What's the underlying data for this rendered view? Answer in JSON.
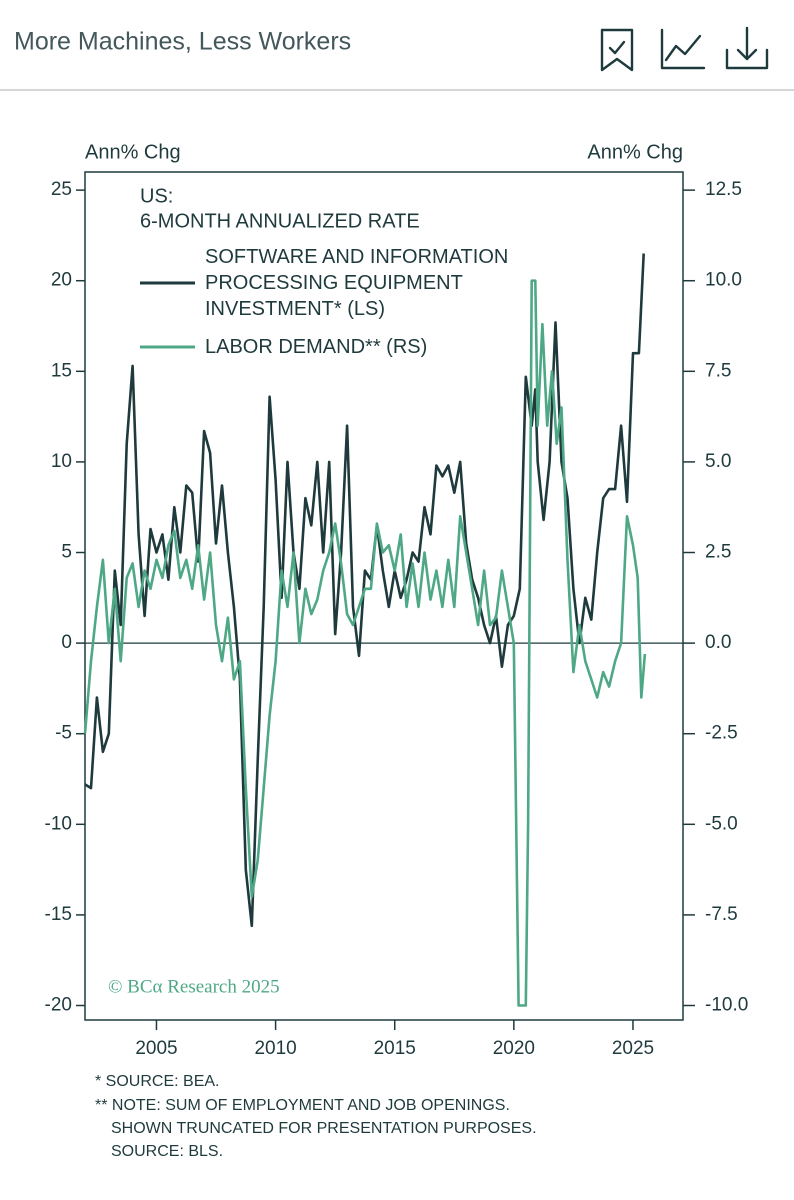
{
  "header": {
    "title": "More Machines, Less Workers"
  },
  "chart_data": {
    "type": "line",
    "legend_title": [
      "US:",
      "6-MONTH ANNUALIZED RATE"
    ],
    "ylabel": "Ann% Chg",
    "y2label": "Ann% Chg",
    "credit": "© BCα Research 2025",
    "xlim": [
      2002,
      2027.1
    ],
    "xticks": [
      2005,
      2010,
      2015,
      2020,
      2025
    ],
    "ylim": [
      -20.8,
      26
    ],
    "yticks": [
      -20,
      -15,
      -10,
      -5,
      0,
      5,
      10,
      15,
      20,
      25
    ],
    "y2lim": [
      -10.4,
      13
    ],
    "y2ticks": [
      {
        "value": -10,
        "label": "-10.0"
      },
      -7.5,
      {
        "value": -5,
        "label": "-5.0"
      },
      -2.5,
      {
        "value": 0,
        "label": "0.0"
      },
      2.5,
      {
        "value": 5,
        "label": "5.0"
      },
      7.5,
      {
        "value": 10,
        "label": "10.0"
      },
      12.5
    ],
    "series": [
      {
        "name": "SOFTWARE AND INFORMATION PROCESSING EQUIPMENT INVESTMENT* (LS)",
        "color": "#1f3a3d",
        "axis": "y",
        "x": [
          2002.0,
          2002.25,
          2002.5,
          2002.75,
          2003.0,
          2003.25,
          2003.5,
          2003.75,
          2004.0,
          2004.25,
          2004.5,
          2004.75,
          2005.0,
          2005.25,
          2005.5,
          2005.75,
          2006.0,
          2006.25,
          2006.5,
          2006.75,
          2007.0,
          2007.25,
          2007.5,
          2007.75,
          2008.0,
          2008.25,
          2008.5,
          2008.75,
          2009.0,
          2009.25,
          2009.5,
          2009.75,
          2010.0,
          2010.25,
          2010.5,
          2010.75,
          2011.0,
          2011.25,
          2011.5,
          2011.75,
          2012.0,
          2012.25,
          2012.5,
          2012.75,
          2013.0,
          2013.25,
          2013.5,
          2013.75,
          2014.0,
          2014.25,
          2014.5,
          2014.75,
          2015.0,
          2015.25,
          2015.5,
          2015.75,
          2016.0,
          2016.25,
          2016.5,
          2016.75,
          2017.0,
          2017.25,
          2017.5,
          2017.75,
          2018.0,
          2018.25,
          2018.5,
          2018.75,
          2019.0,
          2019.25,
          2019.5,
          2019.75,
          2020.0,
          2020.25,
          2020.5,
          2020.75,
          2020.9,
          2021.0,
          2021.25,
          2021.5,
          2021.75,
          2022.0,
          2022.25,
          2022.5,
          2022.75,
          2023.0,
          2023.25,
          2023.5,
          2023.75,
          2024.0,
          2024.25,
          2024.5,
          2024.75,
          2025.0,
          2025.25,
          2025.45
        ],
        "values": [
          -7.8,
          -8,
          -3,
          -6,
          -5,
          4,
          1,
          11,
          15.3,
          6,
          1.5,
          6.3,
          5,
          6,
          3.5,
          7.5,
          5,
          8.7,
          8.3,
          4.5,
          11.7,
          10.5,
          5.5,
          8.7,
          5,
          2,
          -2,
          -12.5,
          -15.6,
          -6.5,
          2,
          13.6,
          9,
          2.5,
          10,
          5,
          3,
          8,
          6.5,
          10,
          5,
          10,
          0.5,
          5,
          12,
          2,
          -0.7,
          4,
          3.5,
          6.5,
          4,
          2,
          4,
          2.5,
          3.5,
          5,
          4.5,
          7.5,
          6,
          9.8,
          9.2,
          9.8,
          8.3,
          10,
          5.5,
          3.5,
          2.5,
          1,
          0,
          1.5,
          -1.3,
          1,
          1.5,
          3,
          14.7,
          12,
          14,
          10,
          6.8,
          10,
          17.7,
          10,
          8,
          3,
          0,
          2.5,
          1.3,
          5,
          8,
          8.5,
          8.5,
          12,
          7.8,
          16,
          16,
          21.5
        ]
      },
      {
        "name": "LABOR DEMAND** (RS)",
        "color": "#4ea886",
        "axis": "y2",
        "x": [
          2002.0,
          2002.25,
          2002.5,
          2002.75,
          2003.0,
          2003.25,
          2003.5,
          2003.75,
          2004.0,
          2004.25,
          2004.5,
          2004.75,
          2005.0,
          2005.25,
          2005.5,
          2005.75,
          2006.0,
          2006.25,
          2006.5,
          2006.75,
          2007.0,
          2007.25,
          2007.5,
          2007.75,
          2008.0,
          2008.25,
          2008.5,
          2008.75,
          2009.0,
          2009.25,
          2009.5,
          2009.75,
          2010.0,
          2010.25,
          2010.5,
          2010.75,
          2011.0,
          2011.25,
          2011.5,
          2011.75,
          2012.0,
          2012.25,
          2012.5,
          2012.75,
          2013.0,
          2013.25,
          2013.5,
          2013.75,
          2014.0,
          2014.25,
          2014.5,
          2014.75,
          2015.0,
          2015.25,
          2015.5,
          2015.75,
          2016.0,
          2016.25,
          2016.5,
          2016.75,
          2017.0,
          2017.25,
          2017.5,
          2017.75,
          2018.0,
          2018.25,
          2018.5,
          2018.75,
          2019.0,
          2019.25,
          2019.5,
          2019.75,
          2020.0,
          2020.2,
          2020.5,
          2020.6,
          2020.75,
          2020.9,
          2021.0,
          2021.2,
          2021.4,
          2021.6,
          2021.8,
          2022.0,
          2022.25,
          2022.5,
          2022.75,
          2023.0,
          2023.25,
          2023.5,
          2023.75,
          2024.0,
          2024.25,
          2024.5,
          2024.75,
          2025.0,
          2025.2,
          2025.35,
          2025.5
        ],
        "values": [
          -2.5,
          -0.5,
          1,
          2.3,
          0,
          1.5,
          -0.5,
          1.8,
          2.2,
          1,
          2,
          1.5,
          2.3,
          1.8,
          2.7,
          3.1,
          1.8,
          2.3,
          1.5,
          2.7,
          1.2,
          2.5,
          0.5,
          -0.5,
          0.7,
          -1,
          -0.5,
          -4,
          -7,
          -6,
          -4,
          -2,
          -0.5,
          2,
          1,
          2.5,
          0,
          1.5,
          0.8,
          1.2,
          2,
          2.5,
          3.3,
          2.2,
          0.8,
          0.5,
          1,
          1.5,
          1.5,
          3.3,
          2.5,
          2.7,
          2,
          3,
          1,
          2.2,
          1,
          2.5,
          1.2,
          2,
          1,
          2.3,
          1,
          3.5,
          2.5,
          1.5,
          0.5,
          2,
          0.5,
          0.7,
          2,
          1,
          0,
          -10,
          -10,
          -5,
          10,
          10,
          6,
          8.8,
          6,
          7.5,
          5.5,
          6.5,
          2.3,
          -0.8,
          0.5,
          -0.5,
          -1,
          -1.5,
          -0.8,
          -1.2,
          -0.5,
          0,
          3.5,
          2.7,
          1.8,
          -1.5,
          -0.3
        ]
      }
    ],
    "notes": [
      "*  SOURCE: BEA.",
      "** NOTE: SUM OF EMPLOYMENT AND JOB OPENINGS.",
      "SHOWN TRUNCATED FOR PRESENTATION PURPOSES.",
      "SOURCE: BLS."
    ]
  }
}
